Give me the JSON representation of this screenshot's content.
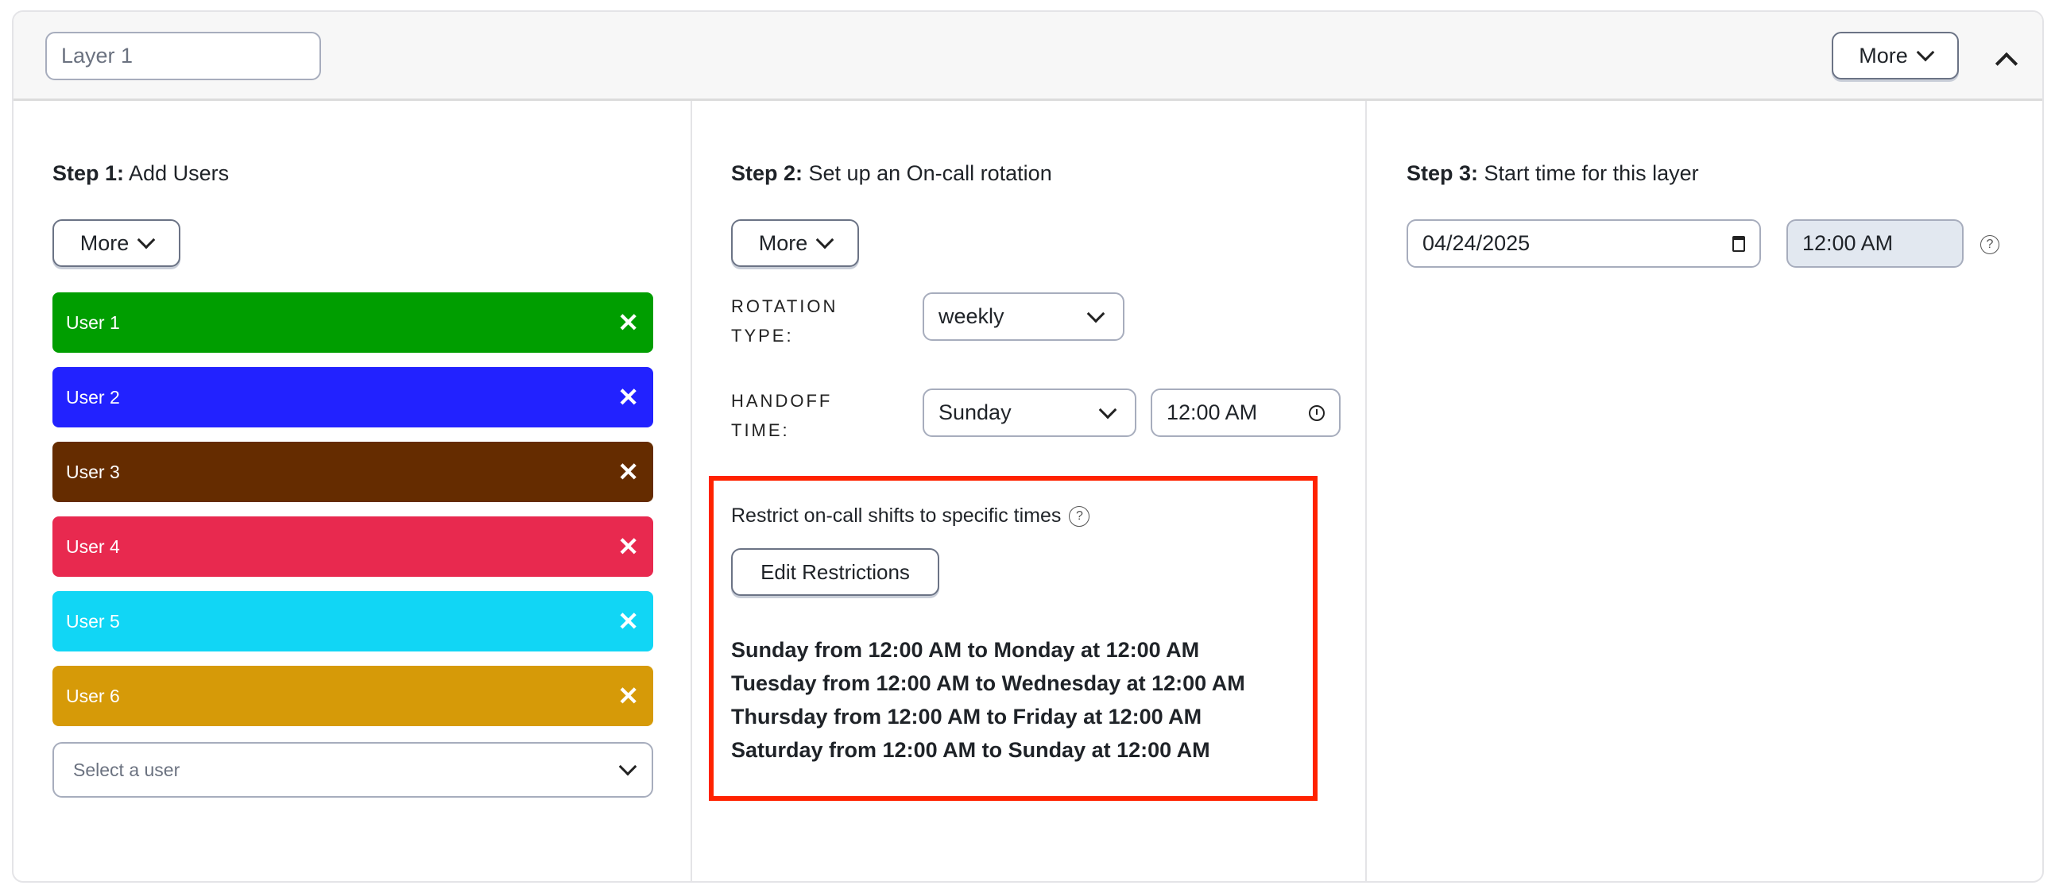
{
  "header": {
    "layer_name_value": "Layer 1",
    "more_label": "More",
    "collapse_icon": "chevron-up-icon"
  },
  "step1": {
    "title_bold": "Step 1:",
    "title_rest": " Add Users",
    "more_label": "More",
    "users": [
      {
        "label": "User 1",
        "color": "#009e00"
      },
      {
        "label": "User 2",
        "color": "#2222ff"
      },
      {
        "label": "User 3",
        "color": "#652c00"
      },
      {
        "label": "User 4",
        "color": "#e8294f"
      },
      {
        "label": "User 5",
        "color": "#11d6f5"
      },
      {
        "label": "User 6",
        "color": "#d69a08"
      }
    ],
    "remove_glyph": "✕",
    "select_user_placeholder": "Select a user"
  },
  "step2": {
    "title_bold": "Step 2:",
    "title_rest": " Set up an On-call rotation",
    "more_label": "More",
    "rotation_label_1": "ROTATION",
    "rotation_label_2": "TYPE:",
    "rotation_value": "weekly",
    "handoff_label_1": "HANDOFF",
    "handoff_label_2": "TIME:",
    "handoff_day": "Sunday",
    "handoff_time": "12:00 AM",
    "restrict_title": "Restrict on-call shifts to specific times",
    "edit_restrictions_label": "Edit Restrictions",
    "restrictions": [
      "Sunday from 12:00 AM to Monday at 12:00 AM",
      "Tuesday from 12:00 AM to Wednesday at 12:00 AM",
      "Thursday from 12:00 AM to Friday at 12:00 AM",
      "Saturday from 12:00 AM to Sunday at 12:00 AM"
    ],
    "highlight_color": "#ff2200"
  },
  "step3": {
    "title_bold": "Step 3:",
    "title_rest": " Start time for this layer",
    "date_value": "04/24/2025",
    "time_value": "12:00 AM"
  },
  "help_glyph": "?"
}
